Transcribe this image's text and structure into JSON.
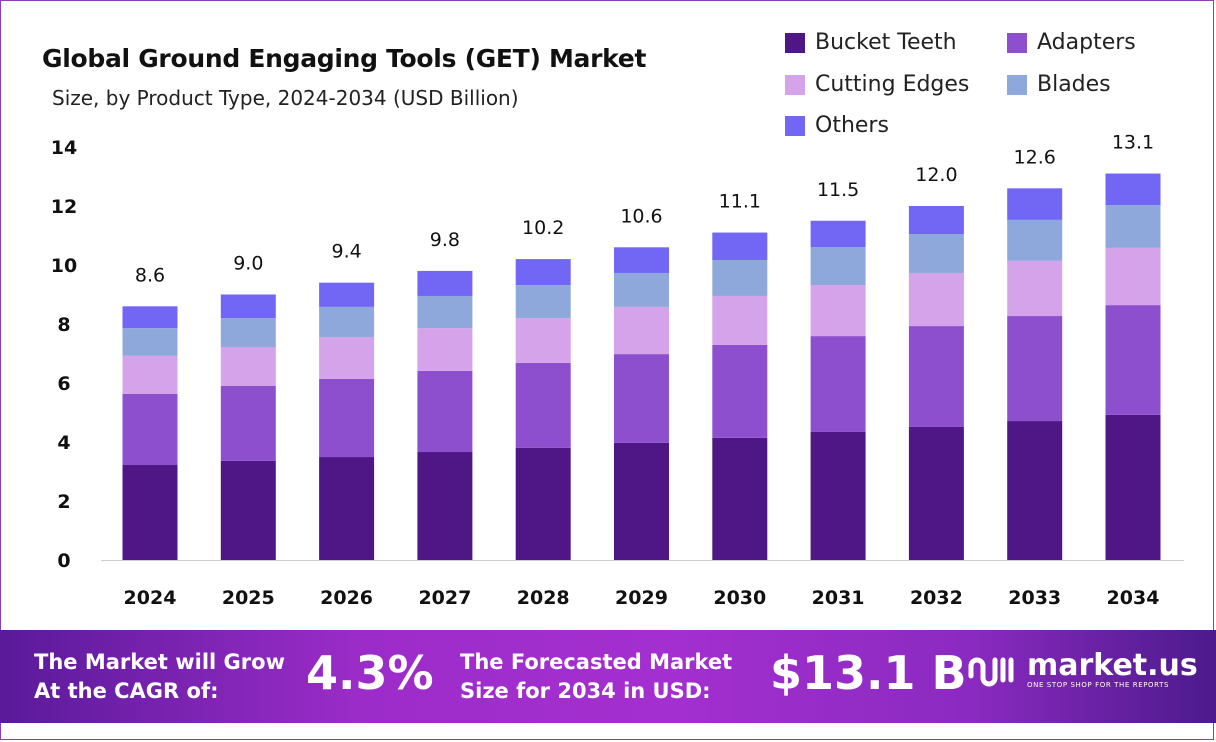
{
  "chart_data": {
    "type": "bar",
    "stacked": true,
    "title": "Global Ground Engaging Tools (GET) Market",
    "subtitle": "Size, by Product Type, 2024-2034 (USD Billion)",
    "categories": [
      "2024",
      "2025",
      "2026",
      "2027",
      "2028",
      "2029",
      "2030",
      "2031",
      "2032",
      "2033",
      "2034"
    ],
    "series": [
      {
        "name": "Bucket Teeth",
        "color": "#4f1785",
        "values": [
          3.22,
          3.36,
          3.49,
          3.66,
          3.8,
          3.97,
          4.14,
          4.34,
          4.51,
          4.71,
          4.92
        ]
      },
      {
        "name": "Adapters",
        "color": "#8e4fcf",
        "values": [
          2.41,
          2.54,
          2.65,
          2.75,
          2.88,
          3.01,
          3.15,
          3.25,
          3.42,
          3.56,
          3.72
        ]
      },
      {
        "name": "Cutting Edges",
        "color": "#d4a3ea",
        "values": [
          1.29,
          1.32,
          1.42,
          1.45,
          1.52,
          1.6,
          1.66,
          1.73,
          1.8,
          1.87,
          1.94
        ]
      },
      {
        "name": "Blades",
        "color": "#8fa8dc",
        "values": [
          0.94,
          0.98,
          1.02,
          1.09,
          1.12,
          1.15,
          1.22,
          1.29,
          1.32,
          1.39,
          1.45
        ]
      },
      {
        "name": "Others",
        "color": "#7266f5",
        "values": [
          0.74,
          0.8,
          0.82,
          0.85,
          0.88,
          0.87,
          0.93,
          0.89,
          0.95,
          1.07,
          1.07
        ]
      }
    ],
    "totals": [
      "8.6",
      "9.0",
      "9.4",
      "9.8",
      "10.2",
      "10.6",
      "11.1",
      "11.5",
      "12.0",
      "12.6",
      "13.1"
    ],
    "ylim": [
      0,
      14
    ],
    "yticks": [
      "0",
      "2",
      "4",
      "6",
      "8",
      "10",
      "12",
      "14"
    ],
    "grid": false,
    "legend_position": "top-right",
    "xlabel": "",
    "ylabel": ""
  },
  "banner": {
    "cagr_label_1": "The Market will Grow",
    "cagr_label_2": "At the CAGR of:",
    "cagr_value": "4.3%",
    "forecast_label_1": "The Forecasted Market",
    "forecast_label_2": "Size for 2034 in USD:",
    "forecast_value": "$13.1 B",
    "logo_name": "market.us",
    "logo_tagline": "ONE STOP SHOP FOR THE REPORTS"
  }
}
